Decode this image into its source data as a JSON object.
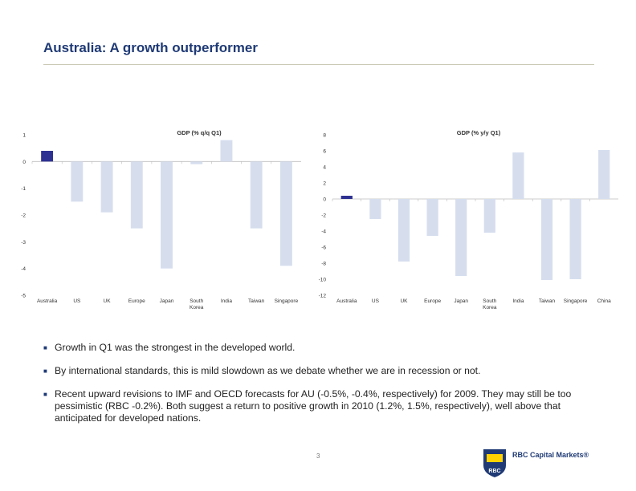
{
  "slide": {
    "title": "Australia: A growth outperformer",
    "page_number": "3",
    "logo_text": "RBC Capital Markets®",
    "logo_badge": "RBC",
    "bullets": [
      "Growth in Q1 was the strongest in the developed world.",
      "By international standards, this is mild slowdown as we debate whether we are in recession or not.",
      "Recent upward revisions to IMF and OECD forecasts for AU (-0.5%, -0.4%, respectively) for 2009. They may still be too pessimistic (RBC -0.2%).  Both suggest a return to positive growth in 2010 (1.2%, 1.5%, respectively), well above that anticipated for developed nations."
    ]
  },
  "colors": {
    "title": "#1f3a75",
    "highlight_bar": "#2e3192",
    "other_bar": "#d6deee"
  },
  "chart_data": [
    {
      "type": "bar",
      "title": "GDP (% q/q Q1)",
      "categories": [
        "Australia",
        "US",
        "UK",
        "Europe",
        "Japan",
        "South Korea",
        "India",
        "Taiwan",
        "Singapore"
      ],
      "values": [
        0.4,
        -1.5,
        -1.9,
        -2.5,
        -4.0,
        -0.1,
        0.8,
        -2.5,
        -3.9
      ],
      "highlight": "Australia",
      "ylim": [
        -5,
        1
      ],
      "yticks": [
        1,
        0,
        -1,
        -2,
        -3,
        -4,
        -5
      ],
      "xlabel": "",
      "ylabel": ""
    },
    {
      "type": "bar",
      "title": "GDP (% y/y Q1)",
      "categories": [
        "Australia",
        "US",
        "UK",
        "Europe",
        "Japan",
        "South Korea",
        "India",
        "Taiwan",
        "Singapore",
        "China"
      ],
      "values": [
        0.4,
        -2.5,
        -7.8,
        -4.6,
        -9.6,
        -4.2,
        5.8,
        -10.1,
        -10.0,
        6.1
      ],
      "highlight": "Australia",
      "ylim": [
        -12,
        8
      ],
      "yticks": [
        8,
        6,
        4,
        2,
        0,
        -2,
        -4,
        -6,
        -8,
        -10,
        -12
      ],
      "xlabel": "",
      "ylabel": ""
    }
  ]
}
